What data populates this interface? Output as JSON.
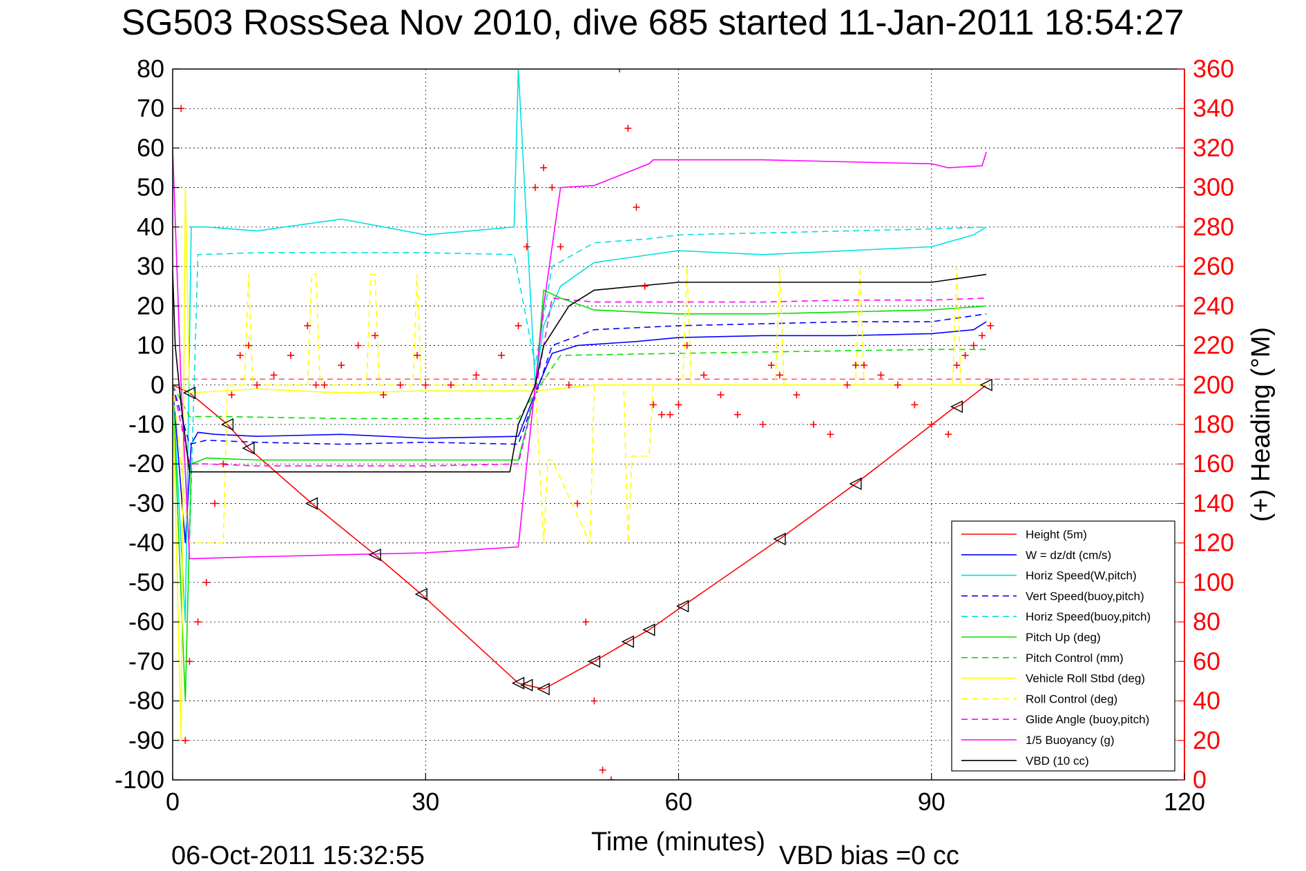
{
  "chart_data": {
    "type": "line",
    "title": "SG503 RossSea Nov 2010, dive 685 started 11-Jan-2011 18:54:27",
    "xlabel": "Time (minutes)",
    "ylabel": "",
    "ylabel_right": "(+) Heading (°M)",
    "footer_left": "06-Oct-2011 15:32:55",
    "footer_right": "VBD bias =0 cc",
    "xlim": [
      0,
      120
    ],
    "ylim": [
      -100,
      80
    ],
    "ylim_right": [
      0,
      360
    ],
    "xticks": [
      "0",
      "30",
      "60",
      "90",
      "120"
    ],
    "yticks": [
      "80",
      "70",
      "60",
      "50",
      "40",
      "30",
      "20",
      "10",
      "0",
      "-10",
      "-20",
      "-30",
      "-40",
      "-50",
      "-60",
      "-70",
      "-80",
      "-90",
      "-100"
    ],
    "yticks_right": [
      "360",
      "340",
      "320",
      "300",
      "280",
      "260",
      "240",
      "220",
      "200",
      "180",
      "160",
      "140",
      "120",
      "100",
      "80",
      "60",
      "40",
      "20",
      "0"
    ],
    "grid": true,
    "legend_position": "bottom-right",
    "colors": {
      "heading": "#ff0000",
      "axis_right": "#ff0000"
    },
    "series": [
      {
        "name": "Height (5m)",
        "color": "#ff0000",
        "style": "solid",
        "x": [
          0,
          2,
          6.5,
          9,
          16.5,
          24,
          29.5,
          41,
          44,
          50,
          54,
          56.5,
          60.5,
          72,
          81,
          92.5,
          93.5,
          96.5
        ],
        "y": [
          0,
          -2,
          -10,
          -16,
          -30,
          -43,
          -53,
          -75.5,
          -77,
          -70,
          -65,
          -62,
          -56,
          -39,
          -25,
          -6,
          -5,
          0
        ]
      },
      {
        "name": "W = dz/dt (cm/s)",
        "color": "#0000ff",
        "style": "solid",
        "x": [
          0,
          1.5,
          2.2,
          3,
          5,
          10,
          20,
          30,
          41,
          43,
          45,
          48,
          55,
          60,
          70,
          80,
          90,
          95,
          96.5
        ],
        "y": [
          0,
          -40,
          -15,
          -12,
          -12.5,
          -13,
          -12.5,
          -13.5,
          -13,
          -2,
          8,
          10,
          11,
          12,
          12.5,
          12.5,
          13,
          14,
          16
        ]
      },
      {
        "name": "Horiz Speed(W,pitch)",
        "color": "#00e0e0",
        "style": "solid",
        "x": [
          0,
          1.5,
          2.2,
          4,
          10,
          20,
          30,
          40.5,
          41,
          43,
          44,
          46,
          50,
          60,
          70,
          80,
          90,
          95,
          96.5
        ],
        "y": [
          0,
          -60,
          40,
          40,
          39,
          42,
          38,
          40,
          80,
          0,
          15,
          25,
          31,
          34,
          33,
          34,
          35,
          38,
          40
        ]
      },
      {
        "name": "Vert Speed(buoy,pitch)",
        "color": "#0000ff",
        "style": "dashed",
        "x": [
          0,
          2,
          4,
          10,
          20,
          30,
          41,
          43,
          45,
          50,
          60,
          70,
          80,
          90,
          96.5
        ],
        "y": [
          0,
          -15,
          -14,
          -14.5,
          -15,
          -14.5,
          -15,
          -3,
          10,
          14,
          15,
          15.5,
          16,
          16,
          18
        ]
      },
      {
        "name": "Horiz Speed(buoy,pitch)",
        "color": "#00e0e0",
        "style": "dashed",
        "x": [
          0,
          2,
          3,
          10,
          20,
          30,
          40.5,
          43,
          45,
          50,
          56.5,
          60,
          70,
          80,
          90,
          96.5
        ],
        "y": [
          0,
          -40,
          33,
          33.5,
          33.5,
          33.5,
          33,
          5,
          30,
          36,
          37,
          38,
          38.5,
          39,
          39.5,
          40
        ]
      },
      {
        "name": "Pitch Up (deg)",
        "color": "#00e000",
        "style": "solid",
        "x": [
          0,
          1.5,
          2.2,
          4,
          10,
          20,
          30,
          41,
          43,
          44,
          46,
          50,
          60,
          70,
          80,
          90,
          96.5
        ],
        "y": [
          0,
          -80,
          -20,
          -18.5,
          -19,
          -19,
          -19,
          -19,
          -2,
          24,
          22,
          19,
          18,
          18,
          18.5,
          19,
          20
        ]
      },
      {
        "name": "Pitch Control (mm)",
        "color": "#00e000",
        "style": "dashed",
        "x": [
          0,
          2,
          6,
          20,
          41,
          43,
          46,
          60,
          75,
          90,
          96.5
        ],
        "y": [
          0,
          -8,
          -8,
          -8.5,
          -8.5,
          -2,
          7.5,
          8,
          8.5,
          9,
          9
        ]
      },
      {
        "name": "Vehicle Roll Stbd (deg)",
        "color": "#ffff00",
        "style": "solid",
        "x": [
          0,
          1,
          1.5,
          2,
          10,
          20,
          30,
          40,
          43,
          50,
          60,
          70,
          80,
          90,
          96.5
        ],
        "y": [
          0,
          -90,
          50,
          -2,
          -1,
          -2,
          -1.5,
          -1.5,
          -1.5,
          0,
          0,
          0,
          0,
          0,
          0
        ]
      },
      {
        "name": "Roll Control (deg)",
        "color": "#ffff00",
        "style": "dashed",
        "x": [
          0,
          2,
          6,
          6.5,
          8.5,
          9,
          9.5,
          16,
          16.5,
          17,
          17.5,
          23,
          23.5,
          24,
          24.5,
          28.5,
          29,
          29.5,
          30,
          43,
          44,
          44.5,
          45,
          49.5,
          50,
          50.5,
          53.5,
          54,
          54.5,
          56.5,
          57,
          60.5,
          61,
          61.5,
          71.5,
          72,
          72.5,
          81,
          81.5,
          82,
          92.5,
          93,
          93.5,
          96.5
        ],
        "y": [
          0,
          -40,
          -40,
          0,
          0,
          28,
          0,
          0,
          28,
          28,
          0,
          0,
          28,
          28,
          0,
          0,
          28,
          0,
          0,
          0,
          -40,
          -19,
          -19,
          -40,
          0,
          0,
          0,
          -40,
          -18,
          -18,
          0,
          0,
          30,
          0,
          0,
          30,
          0,
          0,
          30,
          0,
          0,
          30,
          0,
          0
        ]
      },
      {
        "name": "Glide Angle (buoy,pitch)",
        "color": "#ff00ff",
        "style": "dashed",
        "x": [
          0,
          2,
          4,
          10,
          20,
          30,
          41,
          43,
          45,
          50,
          60,
          70,
          80,
          90,
          96.5
        ],
        "y": [
          0,
          -20,
          -20,
          -20.5,
          -20.5,
          -20.5,
          -20,
          -2,
          22,
          21,
          21,
          21,
          21.5,
          21.5,
          22
        ]
      },
      {
        "name": "1/5 Buoyancy (g)",
        "color": "#ff00ff",
        "style": "solid",
        "x": [
          0,
          1,
          2,
          10,
          20,
          30,
          41,
          42,
          44,
          46,
          50,
          56.5,
          57,
          60,
          70,
          80,
          90,
          92,
          96,
          96.5
        ],
        "y": [
          60,
          0,
          -44,
          -43.5,
          -43,
          -42.5,
          -41,
          -20,
          20,
          50,
          50.5,
          56,
          57,
          57,
          57,
          56.5,
          56,
          55,
          55.5,
          59
        ]
      },
      {
        "name": "VBD (10 cc)",
        "color": "#000000",
        "style": "solid",
        "x": [
          0,
          0.3,
          1,
          2,
          10,
          20,
          30,
          40,
          41,
          43,
          44,
          47,
          50,
          60,
          70,
          80,
          90,
          96.5
        ],
        "y": [
          29,
          10,
          -5,
          -22,
          -22,
          -22,
          -22,
          -22,
          -10,
          0,
          10,
          20,
          24,
          26,
          26,
          26,
          26,
          28
        ]
      }
    ],
    "heading_series": {
      "name": "(+) Heading (°M)",
      "axis": "right",
      "marker": "+",
      "color": "#ff0000",
      "x": [
        1,
        1.5,
        2,
        3,
        4,
        5,
        6,
        7,
        8,
        9,
        10,
        12,
        14,
        16,
        17,
        18,
        20,
        22,
        24,
        25,
        27,
        29,
        30,
        33,
        36,
        39,
        41,
        42,
        43,
        44,
        45,
        46,
        47,
        48,
        49,
        50,
        51,
        52,
        53,
        54,
        55,
        56,
        57,
        58,
        59,
        60,
        61,
        63,
        65,
        67,
        70,
        71,
        72,
        74,
        76,
        78,
        80,
        81,
        82,
        84,
        86,
        88,
        90,
        92,
        93,
        94,
        95,
        96,
        97
      ],
      "y": [
        340,
        20,
        60,
        80,
        100,
        140,
        160,
        195,
        215,
        220,
        200,
        205,
        215,
        230,
        200,
        200,
        210,
        220,
        225,
        195,
        200,
        215,
        200,
        200,
        205,
        215,
        230,
        270,
        300,
        310,
        300,
        270,
        200,
        140,
        80,
        40,
        5,
        0,
        360,
        330,
        290,
        250,
        190,
        185,
        185,
        190,
        220,
        205,
        195,
        185,
        180,
        210,
        205,
        195,
        180,
        175,
        200,
        210,
        210,
        205,
        200,
        190,
        180,
        175,
        210,
        215,
        220,
        225,
        230
      ]
    },
    "reference_line": {
      "y": 1.5,
      "color": "#ff0000",
      "style": "dashed"
    },
    "markers": {
      "symbol": "triangle-left",
      "x": [
        2,
        6.5,
        9,
        16.5,
        24,
        29.5,
        41,
        42,
        44,
        50,
        54,
        56.5,
        60.5,
        72,
        81,
        93,
        96.5
      ]
    }
  }
}
